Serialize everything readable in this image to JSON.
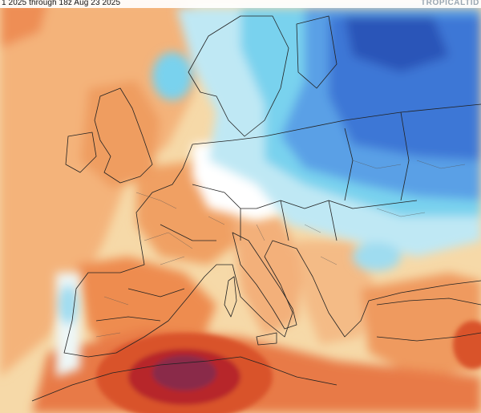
{
  "header": {
    "caption": "1 2025 through 18z Aug 23 2025",
    "brand": "TROPICALTID"
  },
  "map": {
    "type": "temperature anomaly map, Europe",
    "colors": {
      "sea_neutral": "#f6d9a8",
      "warm_light": "#f4b37a",
      "warm": "#ee8c50",
      "warm_strong": "#d9532b",
      "hot": "#b7282b",
      "hottest": "#8a2a4a",
      "neutral": "#ffffff",
      "cool_light": "#bfe8f4",
      "cool": "#79d2ee",
      "cold": "#5aa0e6",
      "colder": "#3c77d6",
      "coldest": "#2b55b8",
      "borders": "#222222"
    }
  }
}
